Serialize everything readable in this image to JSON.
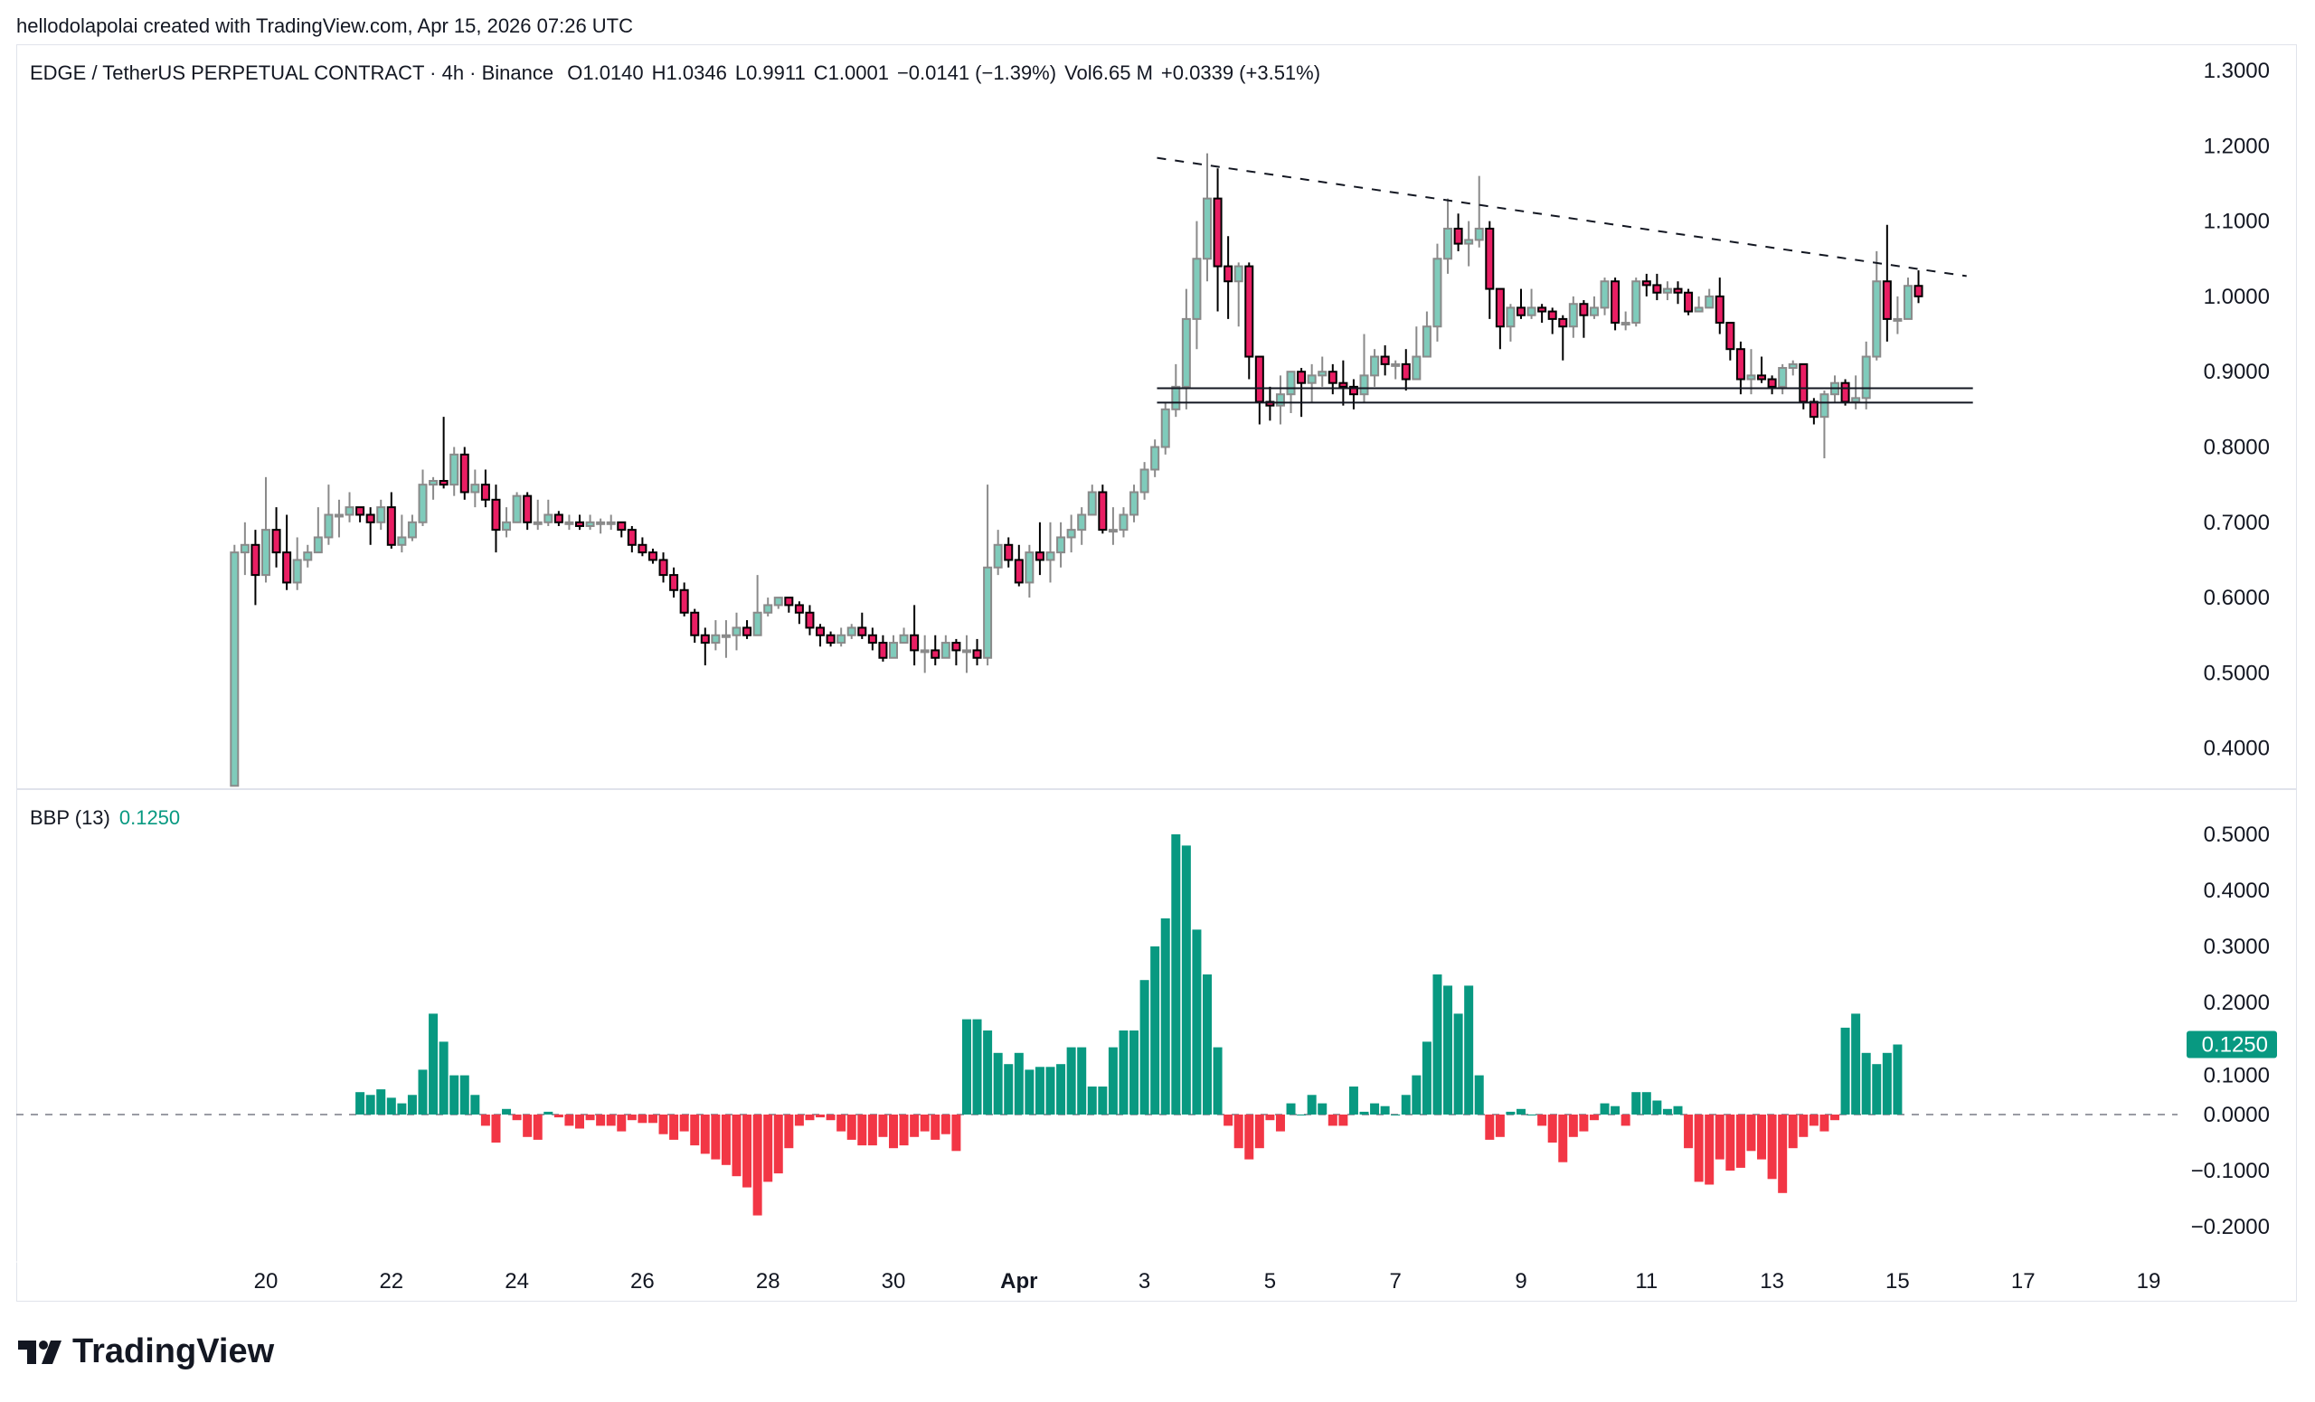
{
  "credit": "hellodolapolai created with TradingView.com, Apr 15, 2026 07:26 UTC",
  "legend": {
    "symbol": "EDGE / TetherUS PERPETUAL CONTRACT · 4h · Binance",
    "open": "O1.0140",
    "high": "H1.0346",
    "low": "L0.9911",
    "close": "C1.0001",
    "change": "−0.0141 (−1.39%)",
    "volume": "Vol6.65 M",
    "extra_change": "+0.0339 (+3.51%)"
  },
  "indicator": {
    "name": "BBP (13)",
    "value": "0.1250"
  },
  "logo_text": "TradingView",
  "colors": {
    "up": "#7fcbbb",
    "down": "#e91e63",
    "bbp_up": "#089981",
    "bbp_down": "#f23645"
  },
  "chart_data": [
    {
      "type": "candlestick",
      "title": "EDGE / TetherUS PERPETUAL CONTRACT · 4h · Binance",
      "ylim": [
        0.35,
        1.31
      ],
      "y_ticks": [
        "1.3000",
        "1.2000",
        "1.1000",
        "1.0000",
        "0.9000",
        "0.8000",
        "0.7000",
        "0.6000",
        "0.5000",
        "0.4000"
      ],
      "y_tick_values": [
        1.3,
        1.2,
        1.1,
        1.0,
        0.9,
        0.8,
        0.7,
        0.6,
        0.5,
        0.4
      ],
      "x_ticks": [
        {
          "label": "20",
          "day": 20
        },
        {
          "label": "22",
          "day": 22
        },
        {
          "label": "24",
          "day": 24
        },
        {
          "label": "26",
          "day": 26
        },
        {
          "label": "28",
          "day": 28
        },
        {
          "label": "30",
          "day": 30
        },
        {
          "label": "Apr",
          "day": 32
        },
        {
          "label": "3",
          "day": 34
        },
        {
          "label": "5",
          "day": 36
        },
        {
          "label": "7",
          "day": 38
        },
        {
          "label": "9",
          "day": 40
        },
        {
          "label": "11",
          "day": 42
        },
        {
          "label": "13",
          "day": 44
        },
        {
          "label": "15",
          "day": 46
        },
        {
          "label": "17",
          "day": 48
        },
        {
          "label": "19",
          "day": 50
        }
      ],
      "first_bar_day": 19.5,
      "bars_per_day": 6,
      "first_open": 0.35,
      "close": [
        0.66,
        0.67,
        0.63,
        0.69,
        0.66,
        0.62,
        0.65,
        0.66,
        0.68,
        0.71,
        0.71,
        0.72,
        0.71,
        0.7,
        0.72,
        0.67,
        0.68,
        0.7,
        0.75,
        0.755,
        0.75,
        0.79,
        0.74,
        0.75,
        0.73,
        0.69,
        0.7,
        0.735,
        0.7,
        0.7,
        0.71,
        0.7,
        0.7,
        0.695,
        0.7,
        0.7,
        0.7,
        0.69,
        0.67,
        0.66,
        0.65,
        0.63,
        0.61,
        0.58,
        0.55,
        0.54,
        0.55,
        0.55,
        0.56,
        0.55,
        0.58,
        0.59,
        0.6,
        0.59,
        0.58,
        0.56,
        0.55,
        0.54,
        0.55,
        0.56,
        0.55,
        0.54,
        0.52,
        0.54,
        0.55,
        0.53,
        0.53,
        0.52,
        0.54,
        0.53,
        0.53,
        0.52,
        0.64,
        0.67,
        0.65,
        0.62,
        0.66,
        0.65,
        0.66,
        0.68,
        0.69,
        0.71,
        0.74,
        0.69,
        0.69,
        0.71,
        0.74,
        0.77,
        0.8,
        0.85,
        0.88,
        0.97,
        1.05,
        1.13,
        1.04,
        1.02,
        1.04,
        0.92,
        0.86,
        0.855,
        0.87,
        0.9,
        0.885,
        0.895,
        0.9,
        0.885,
        0.88,
        0.87,
        0.895,
        0.92,
        0.91,
        0.91,
        0.89,
        0.92,
        0.96,
        1.05,
        1.09,
        1.07,
        1.075,
        1.09,
        1.01,
        0.96,
        0.985,
        0.975,
        0.985,
        0.98,
        0.97,
        0.96,
        0.99,
        0.975,
        0.985,
        1.02,
        0.965,
        0.965,
        1.02,
        1.015,
        1.005,
        1.01,
        1.005,
        0.98,
        0.985,
        1.0,
        0.965,
        0.93,
        0.89,
        0.895,
        0.89,
        0.88,
        0.905,
        0.91,
        0.86,
        0.84,
        0.87,
        0.885,
        0.86,
        0.865,
        0.92,
        1.02,
        0.97,
        0.97,
        1.014,
        1.0001
      ],
      "high": [
        0.67,
        0.7,
        0.69,
        0.76,
        0.72,
        0.71,
        0.68,
        0.67,
        0.72,
        0.75,
        0.73,
        0.74,
        0.72,
        0.72,
        0.73,
        0.74,
        0.71,
        0.71,
        0.77,
        0.76,
        0.84,
        0.8,
        0.8,
        0.77,
        0.77,
        0.75,
        0.72,
        0.74,
        0.74,
        0.73,
        0.73,
        0.715,
        0.71,
        0.71,
        0.71,
        0.705,
        0.71,
        0.7,
        0.695,
        0.68,
        0.665,
        0.66,
        0.64,
        0.62,
        0.585,
        0.56,
        0.57,
        0.57,
        0.58,
        0.57,
        0.63,
        0.6,
        0.6,
        0.6,
        0.595,
        0.59,
        0.565,
        0.555,
        0.56,
        0.565,
        0.58,
        0.56,
        0.55,
        0.55,
        0.56,
        0.59,
        0.55,
        0.55,
        0.55,
        0.545,
        0.55,
        0.545,
        0.75,
        0.69,
        0.68,
        0.67,
        0.67,
        0.7,
        0.7,
        0.7,
        0.71,
        0.72,
        0.75,
        0.75,
        0.72,
        0.72,
        0.75,
        0.78,
        0.81,
        0.86,
        0.91,
        1.01,
        1.1,
        1.19,
        1.17,
        1.08,
        1.045,
        1.045,
        0.92,
        0.88,
        0.895,
        0.9,
        0.905,
        0.91,
        0.92,
        0.91,
        0.915,
        0.89,
        0.95,
        0.93,
        0.935,
        0.915,
        0.93,
        0.96,
        0.98,
        1.07,
        1.13,
        1.11,
        1.1,
        1.16,
        1.1,
        1.01,
        0.99,
        1.01,
        1.01,
        0.99,
        0.985,
        0.975,
        1.0,
        0.995,
        1.0,
        1.025,
        1.025,
        0.98,
        1.025,
        1.03,
        1.03,
        1.02,
        1.02,
        1.01,
        1.0,
        1.01,
        1.025,
        0.965,
        0.94,
        0.93,
        0.92,
        0.895,
        0.91,
        0.915,
        0.91,
        0.865,
        0.875,
        0.895,
        0.89,
        0.895,
        0.94,
        1.06,
        1.095,
        1.0,
        1.025,
        1.0346
      ],
      "low": [
        0.35,
        0.63,
        0.59,
        0.62,
        0.64,
        0.61,
        0.61,
        0.64,
        0.67,
        0.67,
        0.68,
        0.7,
        0.7,
        0.67,
        0.69,
        0.665,
        0.66,
        0.675,
        0.695,
        0.73,
        0.745,
        0.735,
        0.73,
        0.72,
        0.72,
        0.66,
        0.68,
        0.7,
        0.69,
        0.69,
        0.695,
        0.695,
        0.69,
        0.69,
        0.69,
        0.685,
        0.69,
        0.68,
        0.66,
        0.655,
        0.645,
        0.62,
        0.6,
        0.575,
        0.54,
        0.51,
        0.53,
        0.52,
        0.53,
        0.545,
        0.55,
        0.575,
        0.585,
        0.58,
        0.565,
        0.55,
        0.535,
        0.535,
        0.535,
        0.545,
        0.545,
        0.53,
        0.515,
        0.52,
        0.54,
        0.51,
        0.5,
        0.51,
        0.52,
        0.51,
        0.5,
        0.51,
        0.51,
        0.63,
        0.64,
        0.615,
        0.6,
        0.63,
        0.62,
        0.64,
        0.66,
        0.67,
        0.71,
        0.685,
        0.67,
        0.68,
        0.7,
        0.73,
        0.76,
        0.79,
        0.84,
        0.85,
        0.93,
        1.02,
        0.98,
        0.97,
        0.96,
        0.89,
        0.83,
        0.835,
        0.83,
        0.845,
        0.84,
        0.86,
        0.88,
        0.87,
        0.855,
        0.85,
        0.86,
        0.88,
        0.895,
        0.89,
        0.875,
        0.89,
        0.92,
        0.94,
        1.03,
        1.06,
        1.04,
        1.065,
        0.97,
        0.93,
        0.94,
        0.97,
        0.97,
        0.965,
        0.95,
        0.915,
        0.945,
        0.945,
        0.97,
        0.975,
        0.955,
        0.955,
        0.96,
        1.0,
        0.995,
        0.995,
        0.99,
        0.975,
        0.98,
        0.99,
        0.95,
        0.915,
        0.87,
        0.87,
        0.885,
        0.87,
        0.87,
        0.895,
        0.85,
        0.83,
        0.785,
        0.86,
        0.855,
        0.85,
        0.85,
        0.915,
        0.94,
        0.95,
        0.97,
        0.9911
      ],
      "drawings": [
        {
          "type": "trendline",
          "style": "dashed",
          "from": {
            "day": 34.2,
            "price": 1.184
          },
          "to": {
            "day": 47.1,
            "price": 1.027
          }
        },
        {
          "type": "horizontal",
          "from_day": 34.2,
          "to_day": 47.2,
          "price": 0.878
        },
        {
          "type": "horizontal",
          "from_day": 34.2,
          "to_day": 47.2,
          "price": 0.859
        }
      ]
    },
    {
      "type": "bar",
      "title": "BBP (13)",
      "ylim": [
        -0.25,
        0.52
      ],
      "y_ticks": [
        "0.5000",
        "0.4000",
        "0.3000",
        "0.2000",
        "0.1000",
        "0.0000",
        "−0.1000",
        "−0.2000"
      ],
      "y_tick_values": [
        0.5,
        0.4,
        0.3,
        0.2,
        0.1,
        0.0,
        -0.1,
        -0.2
      ],
      "last_value": 0.125,
      "last_value_label": "0.1250",
      "values": [
        null,
        null,
        null,
        null,
        null,
        null,
        null,
        null,
        null,
        null,
        null,
        null,
        0.04,
        0.035,
        0.045,
        0.03,
        0.02,
        0.035,
        0.08,
        0.18,
        0.13,
        0.07,
        0.07,
        0.035,
        -0.02,
        -0.05,
        0.01,
        -0.01,
        -0.04,
        -0.045,
        0.005,
        -0.005,
        -0.02,
        -0.025,
        -0.01,
        -0.02,
        -0.02,
        -0.03,
        -0.01,
        -0.015,
        -0.015,
        -0.035,
        -0.045,
        -0.03,
        -0.055,
        -0.07,
        -0.08,
        -0.09,
        -0.11,
        -0.13,
        -0.18,
        -0.12,
        -0.105,
        -0.06,
        -0.02,
        -0.01,
        -0.005,
        -0.01,
        -0.03,
        -0.045,
        -0.055,
        -0.055,
        -0.04,
        -0.06,
        -0.055,
        -0.04,
        -0.03,
        -0.045,
        -0.035,
        -0.065,
        0.17,
        0.17,
        0.15,
        0.11,
        0.09,
        0.11,
        0.08,
        0.085,
        0.085,
        0.09,
        0.12,
        0.12,
        0.05,
        0.05,
        0.12,
        0.15,
        0.15,
        0.24,
        0.3,
        0.35,
        0.5,
        0.48,
        0.33,
        0.25,
        0.12,
        -0.02,
        -0.06,
        -0.08,
        -0.06,
        -0.01,
        -0.03,
        0.02,
        0.0,
        0.035,
        0.02,
        -0.02,
        -0.02,
        0.05,
        0.005,
        0.02,
        0.015,
        0.0,
        0.035,
        0.07,
        0.13,
        0.25,
        0.23,
        0.18,
        0.23,
        0.07,
        -0.045,
        -0.04,
        0.005,
        0.01,
        0.0,
        -0.02,
        -0.05,
        -0.085,
        -0.04,
        -0.03,
        -0.01,
        0.02,
        0.015,
        -0.02,
        0.04,
        0.04,
        0.025,
        0.01,
        0.015,
        -0.06,
        -0.12,
        -0.125,
        -0.08,
        -0.1,
        -0.095,
        -0.065,
        -0.08,
        -0.115,
        -0.14,
        -0.06,
        -0.04,
        -0.02,
        -0.03,
        -0.01,
        0.155,
        0.18,
        0.11,
        0.09,
        0.11,
        0.125
      ]
    }
  ]
}
